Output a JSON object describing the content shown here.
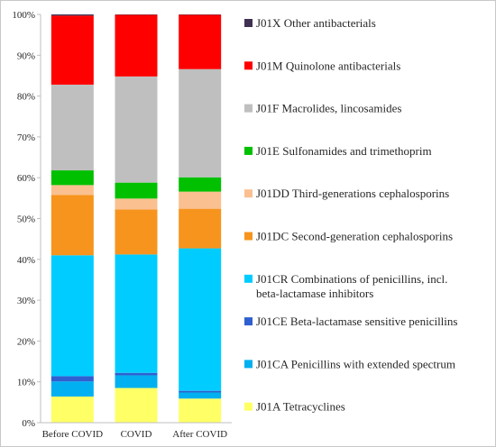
{
  "chart_data": {
    "type": "bar",
    "stacked": true,
    "percent_stacked": true,
    "categories": [
      "Before COVID",
      "COVID",
      "After COVID"
    ],
    "ylim": [
      0,
      100
    ],
    "ytick_values": [
      0,
      10,
      20,
      30,
      40,
      50,
      60,
      70,
      80,
      90,
      100
    ],
    "ytick_labels": [
      "0%",
      "10%",
      "20%",
      "30%",
      "40%",
      "50%",
      "60%",
      "70%",
      "80%",
      "90%",
      "100%"
    ],
    "grid": false,
    "legend": "right",
    "title": "",
    "xlabel": "",
    "ylabel": "",
    "series": [
      {
        "name": "J01A Tetracyclines",
        "color": "#ffff66",
        "values": [
          6.4,
          8.5,
          5.9
        ]
      },
      {
        "name": "J01CA Penicillins with extended spectrum",
        "color": "#00b0f0",
        "values": [
          3.7,
          3.1,
          1.5
        ]
      },
      {
        "name": "J01CE Beta-lactamase sensitive penicillins",
        "color": "#2f5fd0",
        "values": [
          1.3,
          0.6,
          0.4
        ]
      },
      {
        "name": [
          "J01CR Combinations of penicillins, incl.",
          "beta-lactamase inhibitors"
        ],
        "color": "#00ccff",
        "values": [
          29.6,
          29.0,
          34.9
        ]
      },
      {
        "name": "J01DC Second-generation cephalosporins",
        "color": "#f7941d",
        "values": [
          14.8,
          11.0,
          9.7
        ]
      },
      {
        "name": "J01DD Third-generations cephalosporins",
        "color": "#fac090",
        "values": [
          2.4,
          2.7,
          4.2
        ]
      },
      {
        "name": "J01E Sulfonamides and trimethoprim",
        "color": "#00c000",
        "values": [
          3.6,
          3.9,
          3.5
        ]
      },
      {
        "name": "J01F Macrolides, lincosamides",
        "color": "#bfbfbf",
        "values": [
          21.0,
          26.0,
          26.5
        ]
      },
      {
        "name": "J01M Quinolone antibacterials",
        "color": "#ff0000",
        "values": [
          16.9,
          15.1,
          13.3
        ]
      },
      {
        "name": "J01X Other antibacterials",
        "color": "#403152",
        "values": [
          0.3,
          0.1,
          0.1
        ]
      }
    ]
  }
}
